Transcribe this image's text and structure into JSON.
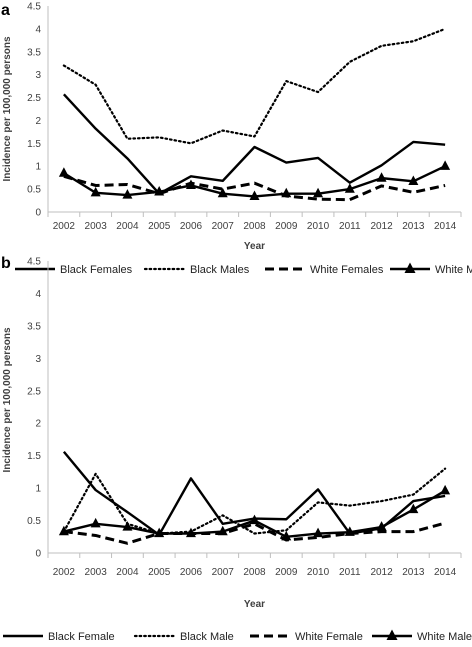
{
  "chart_data": [
    {
      "panel_label": "a",
      "type": "line",
      "xlabel": "Year",
      "ylabel": "Incidence per 100,000 persons",
      "ylim": [
        0,
        4.5
      ],
      "yticks": [
        "0",
        "0.5",
        "1",
        "1.5",
        "2",
        "2.5",
        "3",
        "3.5",
        "4",
        "4.5"
      ],
      "categories": [
        "2002",
        "2003",
        "2004",
        "2005",
        "2006",
        "2007",
        "2008",
        "2009",
        "2010",
        "2011",
        "2012",
        "2013",
        "2014"
      ],
      "legend_position": "bottom",
      "series": [
        {
          "name": "Black Females",
          "style": "solid",
          "values": [
            2.57,
            1.82,
            1.17,
            0.4,
            0.78,
            0.68,
            1.42,
            1.08,
            1.18,
            0.64,
            1.02,
            1.53,
            1.47
          ]
        },
        {
          "name": "Black Males",
          "style": "dotted",
          "values": [
            3.2,
            2.78,
            1.6,
            1.63,
            1.5,
            1.78,
            1.65,
            2.86,
            2.62,
            3.28,
            3.63,
            3.73,
            4.0
          ]
        },
        {
          "name": "White Females",
          "style": "dashed",
          "values": [
            0.78,
            0.58,
            0.6,
            0.4,
            0.63,
            0.5,
            0.63,
            0.35,
            0.28,
            0.27,
            0.57,
            0.43,
            0.58
          ]
        },
        {
          "name": "White Males",
          "style": "triangle",
          "values": [
            0.85,
            0.42,
            0.37,
            0.44,
            0.58,
            0.4,
            0.34,
            0.4,
            0.4,
            0.5,
            0.74,
            0.67,
            1.0
          ]
        }
      ]
    },
    {
      "panel_label": "b",
      "type": "line",
      "xlabel": "Year",
      "ylabel": "Incidence per 100,000 persons",
      "ylim": [
        0,
        4.5
      ],
      "yticks": [
        "0",
        "0.5",
        "1",
        "1.5",
        "2",
        "2.5",
        "3",
        "3.5",
        "4",
        "4.5"
      ],
      "categories": [
        "2002",
        "2003",
        "2004",
        "2005",
        "2006",
        "2007",
        "2008",
        "2009",
        "2010",
        "2011",
        "2012",
        "2013",
        "2014"
      ],
      "legend_position": "bottom",
      "series": [
        {
          "name": "Black Female",
          "style": "solid",
          "values": [
            1.56,
            0.97,
            0.63,
            0.28,
            1.15,
            0.45,
            0.53,
            0.52,
            0.98,
            0.3,
            0.38,
            0.8,
            0.88
          ]
        },
        {
          "name": "Black Male",
          "style": "dotted",
          "values": [
            0.33,
            1.22,
            0.45,
            0.3,
            0.33,
            0.58,
            0.3,
            0.35,
            0.78,
            0.73,
            0.8,
            0.9,
            1.3
          ]
        },
        {
          "name": "White Female",
          "style": "dashed",
          "values": [
            0.33,
            0.27,
            0.15,
            0.3,
            0.3,
            0.3,
            0.45,
            0.2,
            0.24,
            0.3,
            0.33,
            0.33,
            0.46
          ]
        },
        {
          "name": "White Male",
          "style": "triangle",
          "values": [
            0.33,
            0.45,
            0.4,
            0.3,
            0.3,
            0.33,
            0.5,
            0.25,
            0.3,
            0.32,
            0.4,
            0.67,
            0.96
          ]
        }
      ]
    }
  ]
}
